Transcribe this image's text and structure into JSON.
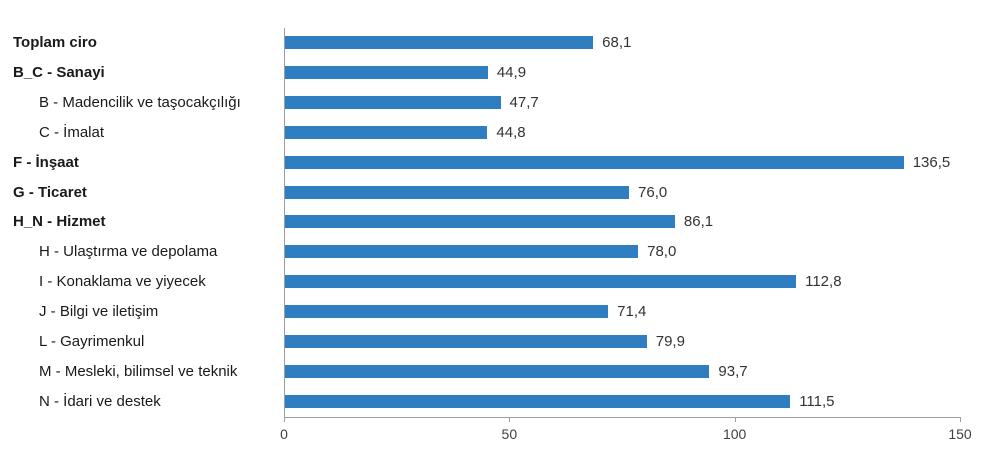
{
  "chart_data": {
    "type": "bar",
    "orientation": "horizontal",
    "title": "",
    "xlabel": "",
    "ylabel": "",
    "xlim": [
      0,
      150
    ],
    "x_ticks": [
      {
        "value": 0,
        "label": "0"
      },
      {
        "value": 50,
        "label": "50"
      },
      {
        "value": 100,
        "label": "100"
      },
      {
        "value": 150,
        "label": "150"
      }
    ],
    "grid": false,
    "legend": null,
    "bar_color": "#2E7EC1",
    "axis_color": "#9D9D9D",
    "categories": [
      "Toplam ciro",
      "B_C - Sanayi",
      "B - Madencilik ve taşocakçılığı",
      "C - İmalat",
      "F - İnşaat",
      "G - Ticaret",
      "H_N - Hizmet",
      "H - Ulaştırma ve depolama",
      "I - Konaklama ve yiyecek",
      "J - Bilgi ve iletişim",
      "L - Gayrimenkul",
      "M - Mesleki, bilimsel ve teknik",
      "N - İdari ve destek"
    ],
    "values": [
      68.1,
      44.9,
      47.7,
      44.8,
      136.5,
      76.0,
      86.1,
      78.0,
      112.8,
      71.4,
      79.9,
      93.7,
      111.5
    ],
    "rows": [
      {
        "label": "Toplam ciro",
        "value": 68.1,
        "display": "68,1",
        "bold": true,
        "indent": false
      },
      {
        "label": "B_C - Sanayi",
        "value": 44.9,
        "display": "44,9",
        "bold": true,
        "indent": false
      },
      {
        "label": "B - Madencilik ve taşocakçılığı",
        "value": 47.7,
        "display": "47,7",
        "bold": false,
        "indent": true
      },
      {
        "label": "C - İmalat",
        "value": 44.8,
        "display": "44,8",
        "bold": false,
        "indent": true
      },
      {
        "label": "F - İnşaat",
        "value": 136.5,
        "display": "136,5",
        "bold": true,
        "indent": false
      },
      {
        "label": "G - Ticaret",
        "value": 76.0,
        "display": "76,0",
        "bold": true,
        "indent": false
      },
      {
        "label": "H_N - Hizmet",
        "value": 86.1,
        "display": "86,1",
        "bold": true,
        "indent": false
      },
      {
        "label": "H - Ulaştırma ve depolama",
        "value": 78.0,
        "display": "78,0",
        "bold": false,
        "indent": true
      },
      {
        "label": "I - Konaklama ve yiyecek",
        "value": 112.8,
        "display": "112,8",
        "bold": false,
        "indent": true
      },
      {
        "label": "J - Bilgi ve iletişim",
        "value": 71.4,
        "display": "71,4",
        "bold": false,
        "indent": true
      },
      {
        "label": "L - Gayrimenkul",
        "value": 79.9,
        "display": "79,9",
        "bold": false,
        "indent": true
      },
      {
        "label": "M - Mesleki, bilimsel ve teknik",
        "value": 93.7,
        "display": "93,7",
        "bold": false,
        "indent": true
      },
      {
        "label": "N - İdari ve destek",
        "value": 111.5,
        "display": "111,5",
        "bold": false,
        "indent": true
      }
    ]
  }
}
